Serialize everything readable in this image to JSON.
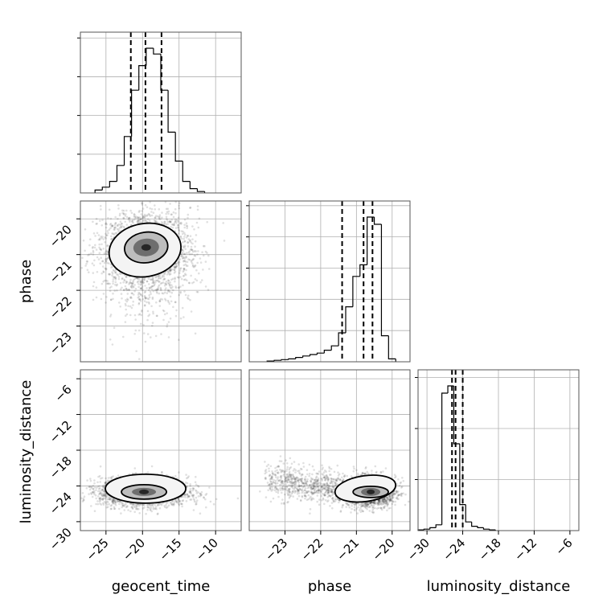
{
  "chart_data": {
    "type": "corner",
    "parameters": [
      "geocent_time",
      "phase",
      "luminosity_distance"
    ],
    "axis_labels": {
      "geocent_time": "geocent_time",
      "phase": "phase",
      "luminosity_distance": "luminosity_distance"
    },
    "ranges": {
      "geocent_time": [
        -28.5,
        -6.5
      ],
      "phase": [
        -24.0,
        -19.5
      ],
      "luminosity_distance": [
        -31.5,
        -4.5
      ]
    },
    "ticks": {
      "geocent_time": [
        -25,
        -20,
        -15,
        -10
      ],
      "phase": [
        -23,
        -22,
        -21,
        -20
      ],
      "luminosity_distance_x": [
        -30,
        -24,
        -18,
        -12,
        -6
      ],
      "luminosity_distance_y": [
        -30,
        -24,
        -18,
        -12,
        -6
      ]
    },
    "tick_labels": {
      "geocent_time": [
        "−25",
        "−20",
        "−15",
        "−10"
      ],
      "phase": [
        "−23",
        "−22",
        "−21",
        "−20"
      ],
      "luminosity_distance": [
        "−30",
        "−24",
        "−18",
        "−12",
        "−6"
      ]
    },
    "quantiles": {
      "geocent_time": [
        -21.6,
        -19.6,
        -17.4
      ],
      "phase": [
        -21.4,
        -20.8,
        -20.55
      ],
      "luminosity_distance": [
        -25.8,
        -25.2,
        -24.0
      ]
    },
    "histograms": {
      "geocent_time": {
        "bin_start": -26.5,
        "bin_width": 1.0,
        "counts": [
          0.02,
          0.04,
          0.08,
          0.19,
          0.39,
          0.71,
          0.88,
          1.0,
          0.96,
          0.71,
          0.42,
          0.22,
          0.08,
          0.03,
          0.01
        ]
      },
      "phase": {
        "bin_start": -23.5,
        "bin_width": 0.2,
        "counts": [
          0.005,
          0.01,
          0.015,
          0.02,
          0.03,
          0.04,
          0.05,
          0.06,
          0.08,
          0.11,
          0.2,
          0.38,
          0.59,
          0.67,
          1.0,
          0.95,
          0.18,
          0.02
        ]
      },
      "luminosity_distance": {
        "bin_start": -31.5,
        "bin_width": 1.0,
        "counts": [
          0.005,
          0.01,
          0.02,
          0.04,
          0.95,
          1.0,
          0.6,
          0.18,
          0.06,
          0.03,
          0.02,
          0.01,
          0.005
        ]
      }
    },
    "density_peaks": {
      "geocent_time_vs_phase": [
        -19.5,
        -20.8
      ],
      "geocent_time_vs_luminosity_distance": [
        -19.8,
        -25.0
      ],
      "phase_vs_luminosity_distance": [
        -20.6,
        -25.0
      ]
    }
  }
}
